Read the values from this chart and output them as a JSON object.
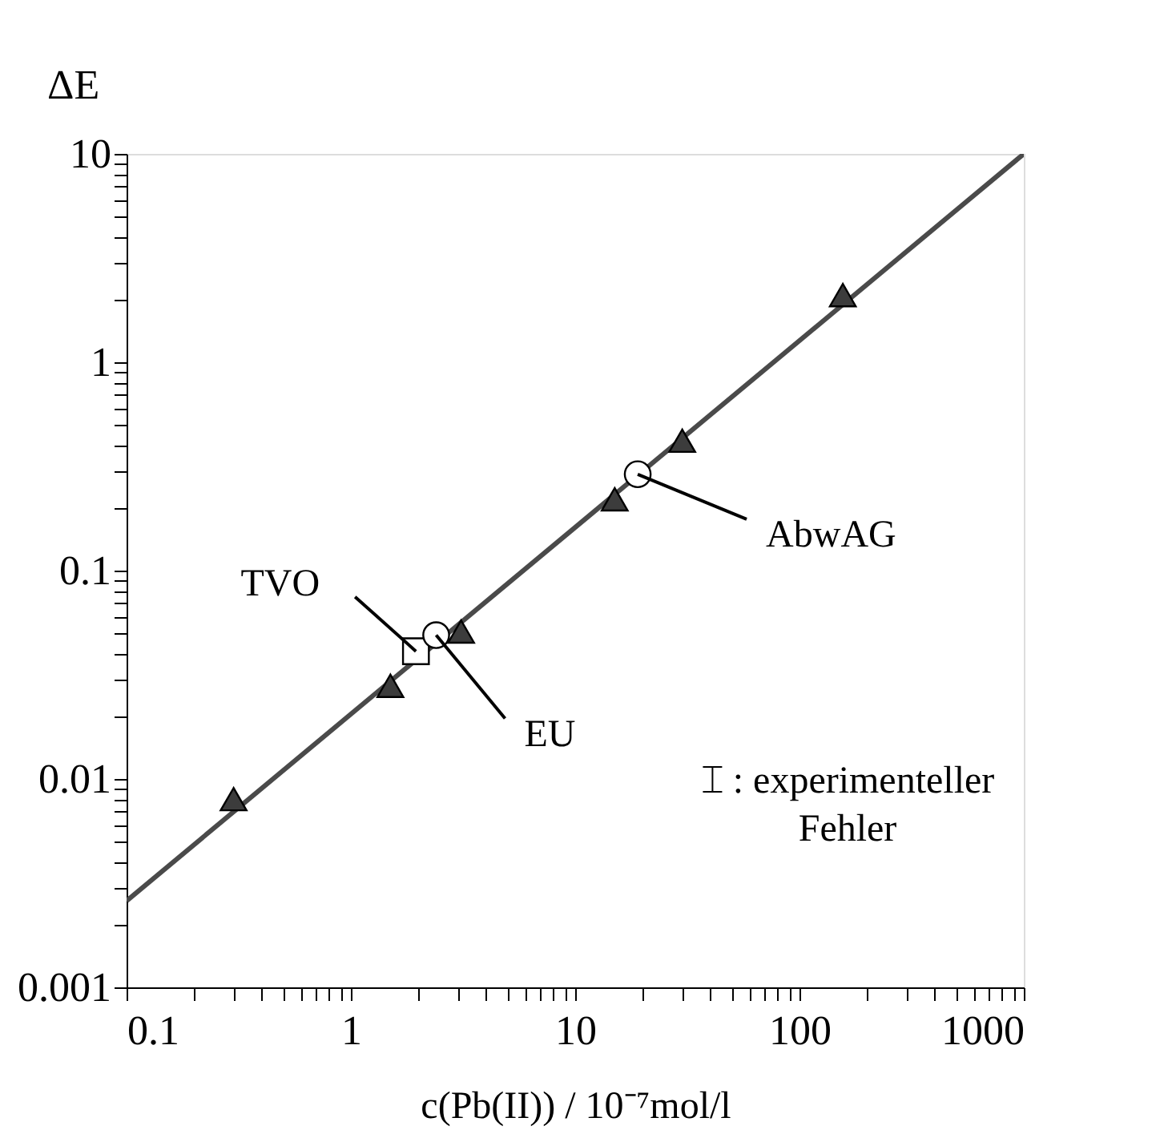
{
  "chart_data": {
    "type": "scatter",
    "xlabel": "c(Pb(II)) / 10⁻⁷mol/l",
    "ylabel": "ΔE",
    "log": "xy",
    "xlim": [
      0.1,
      1000
    ],
    "ylim": [
      0.001,
      10
    ],
    "xticks": [
      0.1,
      {
        "value": 0.2,
        "label": null
      },
      {
        "value": 0.3,
        "label": null
      },
      {
        "value": 0.4,
        "label": null
      },
      {
        "value": 0.5,
        "label": null
      },
      {
        "value": 0.6,
        "label": null
      },
      {
        "value": 0.7,
        "label": null
      },
      {
        "value": 0.8,
        "label": null
      },
      {
        "value": 0.9,
        "label": null
      },
      1,
      {
        "value": 2,
        "label": null
      },
      {
        "value": 3,
        "label": null
      },
      {
        "value": 4,
        "label": null
      },
      {
        "value": 5,
        "label": null
      },
      {
        "value": 6,
        "label": null
      },
      {
        "value": 7,
        "label": null
      },
      {
        "value": 8,
        "label": null
      },
      {
        "value": 9,
        "label": null
      },
      10,
      {
        "value": 20,
        "label": null
      },
      {
        "value": 30,
        "label": null
      },
      {
        "value": 40,
        "label": null
      },
      {
        "value": 50,
        "label": null
      },
      {
        "value": 60,
        "label": null
      },
      {
        "value": 70,
        "label": null
      },
      {
        "value": 80,
        "label": null
      },
      {
        "value": 90,
        "label": null
      },
      100,
      {
        "value": 200,
        "label": null
      },
      {
        "value": 300,
        "label": null
      },
      {
        "value": 400,
        "label": null
      },
      {
        "value": 500,
        "label": null
      },
      {
        "value": 600,
        "label": null
      },
      {
        "value": 700,
        "label": null
      },
      {
        "value": 800,
        "label": null
      },
      {
        "value": 900,
        "label": null
      },
      1000
    ],
    "yticks": [
      0.001,
      {
        "value": 0.002,
        "label": null
      },
      {
        "value": 0.003,
        "label": null
      },
      {
        "value": 0.004,
        "label": null
      },
      {
        "value": 0.005,
        "label": null
      },
      {
        "value": 0.006,
        "label": null
      },
      {
        "value": 0.007,
        "label": null
      },
      {
        "value": 0.008,
        "label": null
      },
      {
        "value": 0.009,
        "label": null
      },
      0.01,
      {
        "value": 0.02,
        "label": null
      },
      {
        "value": 0.03,
        "label": null
      },
      {
        "value": 0.04,
        "label": null
      },
      {
        "value": 0.05,
        "label": null
      },
      {
        "value": 0.06,
        "label": null
      },
      {
        "value": 0.07,
        "label": null
      },
      {
        "value": 0.08,
        "label": null
      },
      {
        "value": 0.09,
        "label": null
      },
      0.1,
      {
        "value": 0.2,
        "label": null
      },
      {
        "value": 0.3,
        "label": null
      },
      {
        "value": 0.4,
        "label": null
      },
      {
        "value": 0.5,
        "label": null
      },
      {
        "value": 0.6,
        "label": null
      },
      {
        "value": 0.7,
        "label": null
      },
      {
        "value": 0.8,
        "label": null
      },
      {
        "value": 0.9,
        "label": null
      },
      1,
      {
        "value": 2,
        "label": null
      },
      {
        "value": 3,
        "label": null
      },
      {
        "value": 4,
        "label": null
      },
      {
        "value": 5,
        "label": null
      },
      {
        "value": 6,
        "label": null
      },
      {
        "value": 7,
        "label": null
      },
      {
        "value": 8,
        "label": null
      },
      {
        "value": 9,
        "label": null
      },
      10
    ],
    "grid": false,
    "series": [
      {
        "type": "line",
        "color": "#4a4a4a",
        "line_style": "solid",
        "marker": "none",
        "x": [
          0.1,
          1000
        ],
        "values": [
          0.0026,
          10
        ]
      },
      {
        "color": "#3c3c3c",
        "marker": "triangle",
        "x": [
          0.3,
          1.5,
          3.1,
          15,
          30,
          156
        ],
        "values": [
          0.008,
          0.028,
          0.051,
          0.22,
          0.42,
          2.1
        ]
      },
      {
        "name": "TVO",
        "color": "#ffffff",
        "marker": "square",
        "x": [
          1.95
        ],
        "values": [
          0.041
        ]
      },
      {
        "name": "EU",
        "color": "#ffffff",
        "marker": "circle",
        "x": [
          2.4
        ],
        "values": [
          0.049
        ]
      },
      {
        "name": "AbwAG",
        "color": "#ffffff",
        "marker": "circle",
        "x": [
          19
        ],
        "values": [
          0.29
        ]
      }
    ],
    "annotations": [
      "⌶ : experimenteller\nFehler"
    ]
  }
}
